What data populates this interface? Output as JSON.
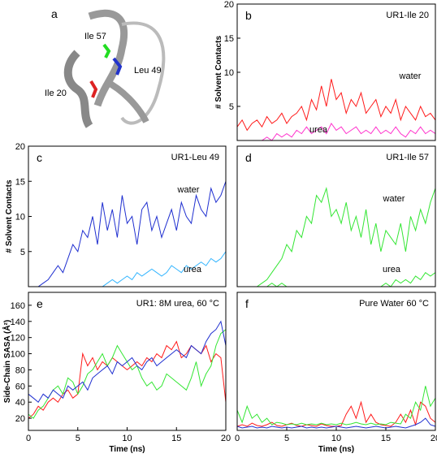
{
  "panel_a": {
    "letter": "a",
    "labels": [
      "Ile 57",
      "Leu 49",
      "Ile 20"
    ]
  },
  "chart_data": [
    {
      "type": "line",
      "letter": "b",
      "title": "UR1-Ile 20",
      "ylabel": "# Solvent Contacts",
      "x": [
        0,
        0.5,
        1,
        1.5,
        2,
        2.5,
        3,
        3.5,
        4,
        4.5,
        5,
        5.5,
        6,
        6.5,
        7,
        7.5,
        8,
        8.5,
        9,
        9.5,
        10,
        10.5,
        11,
        11.5,
        12,
        12.5,
        13,
        13.5,
        14,
        14.5,
        15,
        15.5,
        16,
        16.5,
        17,
        17.5,
        18,
        18.5,
        19,
        19.5,
        20
      ],
      "xlim": [
        0,
        20
      ],
      "ylim": [
        0,
        20
      ],
      "yticks": [
        5,
        10,
        15,
        20
      ],
      "series": [
        {
          "name": "water",
          "color": "#ff1a1a",
          "values": [
            2,
            3,
            1.5,
            2.5,
            3,
            2,
            3.5,
            2.5,
            3,
            4,
            2.5,
            3.5,
            4,
            5,
            3,
            6,
            4.5,
            8,
            5,
            9,
            6,
            7,
            4,
            6,
            5,
            7,
            4,
            5,
            6,
            3.5,
            5,
            4,
            6,
            3,
            5,
            4,
            3,
            5,
            3.5,
            4,
            3
          ]
        },
        {
          "name": "urea",
          "color": "#ff33cc",
          "values": [
            0,
            0,
            0,
            0,
            0,
            0,
            0.5,
            0,
            1,
            0.5,
            1,
            0.5,
            1.5,
            1,
            2,
            1,
            1.5,
            2,
            1,
            2.5,
            1.5,
            2,
            1,
            1.5,
            2,
            1,
            1.5,
            1,
            2,
            1,
            1.5,
            1,
            2,
            1,
            0.5,
            1.5,
            1,
            2,
            1,
            1.5,
            1
          ]
        }
      ]
    },
    {
      "type": "line",
      "letter": "c",
      "title": "UR1-Leu 49",
      "ylabel": "# Solvent Contacts",
      "x": [
        0,
        0.5,
        1,
        1.5,
        2,
        2.5,
        3,
        3.5,
        4,
        4.5,
        5,
        5.5,
        6,
        6.5,
        7,
        7.5,
        8,
        8.5,
        9,
        9.5,
        10,
        10.5,
        11,
        11.5,
        12,
        12.5,
        13,
        13.5,
        14,
        14.5,
        15,
        15.5,
        16,
        16.5,
        17,
        17.5,
        18,
        18.5,
        19,
        19.5,
        20
      ],
      "xlim": [
        0,
        20
      ],
      "ylim": [
        0,
        20
      ],
      "yticks": [
        5,
        10,
        15,
        20
      ],
      "series": [
        {
          "name": "water",
          "color": "#1f2fd0",
          "values": [
            0,
            0,
            0,
            0.5,
            1,
            2,
            3,
            2,
            4,
            6,
            5,
            8,
            7,
            10,
            6,
            12,
            8,
            11,
            7,
            13,
            9,
            10,
            6,
            11,
            12,
            8,
            10,
            7,
            9,
            11,
            8,
            12,
            10,
            9,
            13,
            11,
            10,
            14,
            12,
            13,
            15
          ]
        },
        {
          "name": "urea",
          "color": "#33b5ff",
          "values": [
            0,
            0,
            0,
            0,
            0,
            0,
            0,
            0,
            0,
            0,
            0,
            0,
            0,
            0,
            0,
            0,
            0.5,
            1,
            0.5,
            1,
            1.5,
            1,
            2,
            1.5,
            2,
            2.5,
            2,
            1.5,
            2,
            3,
            2.5,
            2,
            3,
            2.5,
            3,
            3.5,
            3,
            4,
            3.5,
            4,
            5
          ]
        }
      ]
    },
    {
      "type": "line",
      "letter": "d",
      "title": "UR1-Ile 57",
      "x": [
        0,
        0.5,
        1,
        1.5,
        2,
        2.5,
        3,
        3.5,
        4,
        4.5,
        5,
        5.5,
        6,
        6.5,
        7,
        7.5,
        8,
        8.5,
        9,
        9.5,
        10,
        10.5,
        11,
        11.5,
        12,
        12.5,
        13,
        13.5,
        14,
        14.5,
        15,
        15.5,
        16,
        16.5,
        17,
        17.5,
        18,
        18.5,
        19,
        19.5,
        20
      ],
      "xlim": [
        0,
        20
      ],
      "ylim": [
        0,
        20
      ],
      "series": [
        {
          "name": "water",
          "color": "#33e633",
          "values": [
            0,
            0,
            0,
            0,
            0,
            0.5,
            1,
            2,
            3,
            4,
            6,
            5,
            8,
            7,
            10,
            9,
            13,
            12,
            14,
            10,
            11,
            9,
            12,
            8,
            10,
            7,
            11,
            6,
            9,
            5,
            8,
            7,
            6,
            9,
            5,
            10,
            8,
            11,
            9,
            12,
            14
          ]
        },
        {
          "name": "urea",
          "color": "#33e633",
          "values": [
            0,
            0,
            0,
            0,
            0,
            0,
            0,
            0.5,
            0,
            0.5,
            0,
            0,
            0,
            0,
            0,
            0,
            0,
            0,
            0,
            0,
            0,
            0,
            0,
            0,
            0,
            0,
            0,
            0,
            0,
            0,
            0.5,
            0,
            1,
            0.5,
            1,
            0.5,
            1.5,
            1,
            2,
            1.5,
            2
          ]
        }
      ]
    },
    {
      "type": "line",
      "letter": "e",
      "title": "UR1: 8M urea, 60 °C",
      "ylabel": "Side-Chain SASA (Å²)",
      "xlabel": "Time (ns)",
      "x": [
        0,
        0.5,
        1,
        1.5,
        2,
        2.5,
        3,
        3.5,
        4,
        4.5,
        5,
        5.5,
        6,
        6.5,
        7,
        7.5,
        8,
        8.5,
        9,
        9.5,
        10,
        10.5,
        11,
        11.5,
        12,
        12.5,
        13,
        13.5,
        14,
        14.5,
        15,
        15.5,
        16,
        16.5,
        17,
        17.5,
        18,
        18.5,
        19,
        19.5,
        20
      ],
      "xlim": [
        0,
        20
      ],
      "ylim": [
        5,
        176
      ],
      "xticks": [
        0,
        5,
        10,
        15,
        20
      ],
      "yticks": [
        20,
        40,
        60,
        80,
        100,
        120,
        140,
        160
      ],
      "series": [
        {
          "color": "#ff1a1a",
          "values": [
            20,
            25,
            35,
            30,
            40,
            45,
            40,
            50,
            55,
            45,
            50,
            100,
            85,
            95,
            80,
            90,
            85,
            95,
            90,
            85,
            80,
            85,
            90,
            85,
            95,
            90,
            100,
            95,
            110,
            105,
            115,
            95,
            100,
            110,
            105,
            100,
            110,
            90,
            100,
            95,
            40
          ]
        },
        {
          "color": "#33e633",
          "values": [
            25,
            20,
            30,
            35,
            45,
            55,
            60,
            50,
            70,
            65,
            50,
            60,
            75,
            80,
            90,
            100,
            85,
            95,
            110,
            100,
            90,
            80,
            85,
            70,
            60,
            65,
            55,
            60,
            75,
            70,
            65,
            60,
            55,
            70,
            90,
            60,
            75,
            85,
            110,
            125,
            130
          ]
        },
        {
          "color": "#1f2fd0",
          "values": [
            50,
            45,
            40,
            50,
            45,
            55,
            50,
            45,
            60,
            55,
            60,
            65,
            55,
            70,
            75,
            80,
            85,
            75,
            90,
            85,
            90,
            95,
            85,
            80,
            90,
            95,
            85,
            90,
            95,
            100,
            105,
            100,
            95,
            110,
            105,
            100,
            115,
            125,
            130,
            140,
            110
          ]
        }
      ]
    },
    {
      "type": "line",
      "letter": "f",
      "title": "Pure Water 60 °C",
      "xlabel": "Time (ns)",
      "x": [
        0,
        0.5,
        1,
        1.5,
        2,
        2.5,
        3,
        3.5,
        4,
        4.5,
        5,
        5.5,
        6,
        6.5,
        7,
        7.5,
        8,
        8.5,
        9,
        9.5,
        10,
        10.5,
        11,
        11.5,
        12,
        12.5,
        13,
        13.5,
        14,
        14.5,
        15,
        15.5,
        16,
        16.5,
        17,
        17.5,
        18,
        18.5,
        19,
        19.5,
        20
      ],
      "xlim": [
        0,
        20
      ],
      "ylim": [
        5,
        176
      ],
      "xticks": [
        0,
        5,
        10,
        15,
        20
      ],
      "series": [
        {
          "color": "#ff1a1a",
          "values": [
            10,
            12,
            10,
            14,
            11,
            10,
            12,
            15,
            11,
            10,
            12,
            14,
            11,
            10,
            12,
            11,
            10,
            13,
            11,
            10,
            10,
            11,
            25,
            35,
            20,
            40,
            15,
            25,
            15,
            12,
            11,
            10,
            15,
            25,
            15,
            30,
            12,
            40,
            35,
            20,
            15
          ]
        },
        {
          "color": "#33e633",
          "values": [
            30,
            15,
            35,
            20,
            25,
            15,
            20,
            12,
            15,
            14,
            12,
            13,
            12,
            14,
            12,
            13,
            12,
            14,
            12,
            13,
            12,
            14,
            12,
            13,
            15,
            13,
            12,
            14,
            12,
            13,
            12,
            15,
            14,
            13,
            25,
            20,
            40,
            30,
            60,
            35,
            45
          ]
        },
        {
          "color": "#1f2fd0",
          "values": [
            10,
            8,
            9,
            10,
            8,
            9,
            8,
            10,
            9,
            8,
            9,
            8,
            9,
            10,
            8,
            9,
            8,
            9,
            8,
            9,
            10,
            9,
            8,
            9,
            10,
            9,
            8,
            9,
            10,
            9,
            8,
            9,
            10,
            9,
            8,
            10,
            12,
            15,
            20,
            12,
            10
          ]
        }
      ]
    }
  ]
}
